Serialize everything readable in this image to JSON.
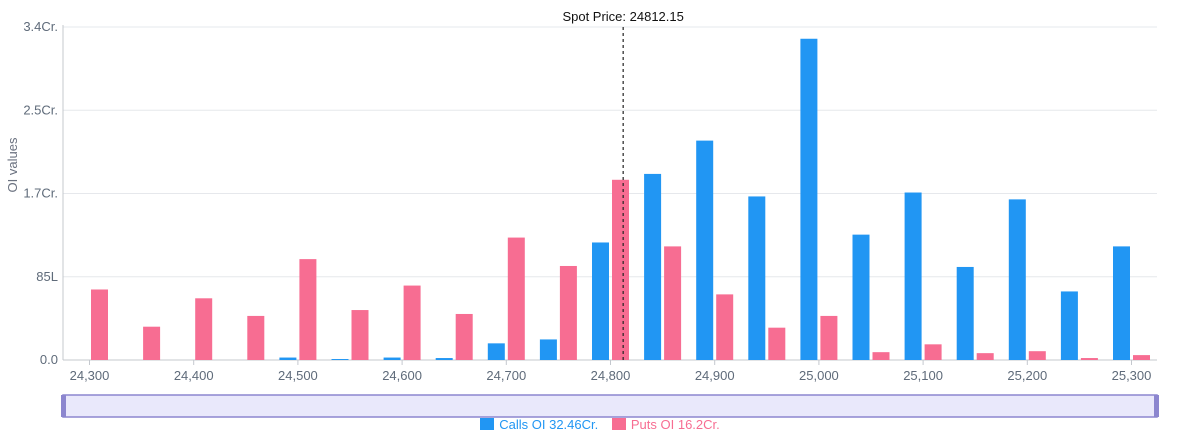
{
  "chart_data": {
    "type": "bar",
    "title": "",
    "xlabel": "",
    "ylabel": "OI values",
    "ylim": [
      0,
      34000000
    ],
    "y_ticks": [
      0,
      8500000,
      17000000,
      25500000,
      34000000
    ],
    "y_tick_labels": [
      "0.0",
      "85L",
      "1.7Cr.",
      "2.5Cr.",
      "3.4Cr."
    ],
    "x_tick_values": [
      24300,
      24400,
      24500,
      24600,
      24700,
      24800,
      24900,
      25000,
      25100,
      25200,
      25300
    ],
    "x_tick_labels": [
      "24,300",
      "24,400",
      "24,500",
      "24,600",
      "24,700",
      "24,800",
      "24,900",
      "25,000",
      "25,100",
      "25,200",
      "25,300"
    ],
    "categories": [
      24300,
      24350,
      24400,
      24450,
      24500,
      24550,
      24600,
      24650,
      24700,
      24750,
      24800,
      24850,
      24900,
      24950,
      25000,
      25050,
      25100,
      25150,
      25200,
      25250,
      25300
    ],
    "series": [
      {
        "name": "Calls OI",
        "color": "#2196f3",
        "values": [
          0,
          0,
          0,
          0,
          250000,
          100000,
          250000,
          200000,
          1700000,
          2100000,
          12000000,
          19000000,
          22400000,
          16700000,
          32800000,
          12800000,
          17100000,
          9500000,
          16400000,
          7000000,
          11600000
        ]
      },
      {
        "name": "Puts OI",
        "color": "#f76d92",
        "values": [
          7200000,
          3400000,
          6300000,
          4500000,
          10300000,
          5100000,
          7600000,
          4700000,
          12500000,
          9600000,
          18400000,
          11600000,
          6700000,
          3300000,
          4500000,
          800000,
          1600000,
          700000,
          900000,
          200000,
          500000
        ]
      }
    ],
    "spot_price": 24812.15,
    "spot_label": "Spot Price: 24812.15",
    "grid": true,
    "legend_position": "bottom-center",
    "legend": [
      {
        "label": "Calls OI 32.46Cr.",
        "color": "#2196f3"
      },
      {
        "label": "Puts OI 16.2Cr.",
        "color": "#f76d92"
      }
    ]
  },
  "slider": {
    "fill_color": "#e9e8fb",
    "border_color": "#8c86cf"
  }
}
